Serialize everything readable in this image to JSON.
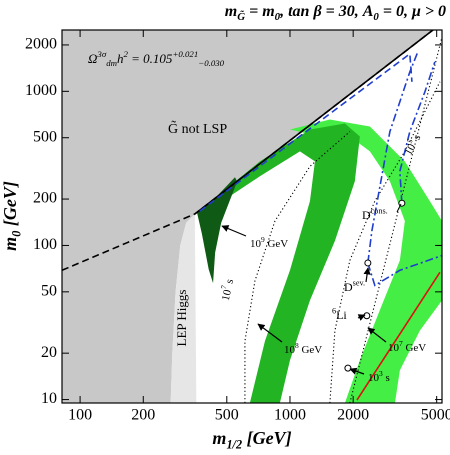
{
  "chart_data": {
    "type": "region",
    "title": [
      {
        "t": "m"
      },
      {
        "t": "G̃",
        "pos": "sub"
      },
      {
        "t": " = m"
      },
      {
        "t": "0",
        "pos": "sub"
      },
      {
        "t": ", tan β = 30, A"
      },
      {
        "t": "0",
        "pos": "sub"
      },
      {
        "t": " = 0, μ > 0"
      }
    ],
    "x_label": [
      {
        "t": "m"
      },
      {
        "t": "1/2",
        "pos": "sub"
      },
      {
        "t": " [GeV]"
      }
    ],
    "y_label": [
      {
        "t": "m"
      },
      {
        "t": "0",
        "pos": "sub"
      },
      {
        "t": " [GeV]"
      }
    ],
    "xscale": "log",
    "yscale": "log",
    "xlim": [
      82,
      5300
    ],
    "ylim": [
      9.5,
      2500
    ],
    "xticks": [
      100,
      200,
      500,
      1000,
      2000,
      5000
    ],
    "yticks": [
      10,
      20,
      50,
      100,
      200,
      500,
      1000,
      2000
    ],
    "regions": [
      {
        "color": "#c8c8c8",
        "x": [
          82,
          82,
          4800,
          352,
          320,
          300,
          285,
          275,
          270
        ],
        "y": [
          9.5,
          2500,
          2500,
          160,
          140,
          100,
          50,
          20,
          9.5
        ]
      },
      {
        "color": "#e6e6e6",
        "x": [
          270,
          275,
          285,
          300,
          320,
          352,
          358
        ],
        "y": [
          9.5,
          20,
          50,
          100,
          140,
          160,
          9.5
        ]
      },
      {
        "color": "#44ee44",
        "x": [
          1000,
          1549,
          2404,
          3526,
          4637,
          5300,
          5300,
          4157,
          3339,
          3162,
          1827,
          2153,
          2679,
          3339,
          3526,
          2992,
          2404,
          1929,
          1390
        ],
        "y": [
          565,
          656,
          591,
          351,
          194,
          144,
          44,
          28,
          15.5,
          9.5,
          9.5,
          18,
          38,
          80,
          144,
          261,
          408,
          509,
          509
        ]
      },
      {
        "color": "#22b422",
        "x": [
          394,
          719,
          1245,
          1827,
          2153,
          2037,
          1637,
          1245,
          1000,
          895,
          644,
          760,
          1000,
          1245,
          1315,
          1115,
          719,
          439
        ],
        "y": [
          180,
          351,
          565,
          618,
          509,
          261,
          107,
          44,
          18,
          9.5,
          9.5,
          24,
          69,
          194,
          351,
          408,
          281,
          180
        ]
      },
      {
        "color": "#0f5a14",
        "x": [
          360,
          420,
          480,
          547,
          560,
          520,
          470,
          440,
          430,
          410,
          380
        ],
        "y": [
          165,
          190,
          230,
          277,
          260,
          200,
          140,
          90,
          57,
          70,
          120
        ]
      }
    ],
    "lines": [
      {
        "color": "#000000",
        "dash": "solid",
        "x": [
          352,
          4800
        ],
        "y": [
          160,
          2500
        ]
      },
      {
        "color": "#000000",
        "dash": "dashed",
        "x": [
          82,
          352,
          4800
        ],
        "y": [
          69,
          160,
          2500
        ]
      },
      {
        "color": "#000000",
        "dash": "dotted",
        "x": [
          610,
          610,
          681,
          848,
          1245,
          1929
        ],
        "y": [
          9.5,
          24,
          59,
          144,
          326,
          548
        ]
      },
      {
        "color": "#000000",
        "dash": "dotted",
        "x": [
          1549,
          1637,
          1929,
          2537,
          3526,
          5180
        ],
        "y": [
          9.5,
          28,
          80,
          194,
          408,
          1153
        ]
      },
      {
        "color": "#000000",
        "dash": "dotted",
        "x": [
          1929,
          5300
        ],
        "y": [
          9.5,
          2250
        ]
      },
      {
        "color": "#dd1111",
        "dash": "solid",
        "x": [
          2085,
          5180
        ],
        "y": [
          9.93,
          67
        ]
      },
      {
        "color": "#1f3fcc",
        "dash": "dashed",
        "x": [
          372,
          3724,
          3811
        ],
        "y": [
          167,
          1750,
          1153
        ]
      },
      {
        "color": "#1f3fcc",
        "dash": "dashdot",
        "x": [
          2350,
          2455,
          2992,
          3724,
          4064
        ],
        "y": [
          77,
          124,
          548,
          1337,
          1800
        ]
      },
      {
        "color": "#1f3fcc",
        "dash": "dashdot",
        "x": [
          3412,
          3339,
          3724,
          4395,
          4898
        ],
        "y": [
          188,
          303,
          548,
          994,
          1552
        ]
      },
      {
        "color": "#1f3fcc",
        "dash": "dashdot",
        "x": [
          2350,
          2537,
          3339,
          5300
        ],
        "y": [
          77,
          55,
          69,
          86
        ]
      }
    ],
    "points": {
      "x": [
        3412,
        2350,
        2323,
        1888
      ],
      "y": [
        188,
        77,
        35,
        16
      ]
    },
    "formula": [
      {
        "t": "Ω"
      },
      {
        "t": "3σ",
        "pos": "sup"
      },
      {
        "t": "dm",
        "pos": "sub"
      },
      {
        "t": "h"
      },
      {
        "t": "2",
        "pos": "sup"
      },
      {
        "t": " = 0.105"
      },
      {
        "t": "+0.021",
        "pos": "sup"
      },
      {
        "t": "−0.030",
        "pos": "sub"
      }
    ],
    "annotations": [
      [
        {
          "t": "G̃ not LSP"
        }
      ],
      [
        {
          "t": "10"
        },
        {
          "t": "9",
          "pos": "sup"
        },
        {
          "t": " GeV"
        }
      ],
      [
        {
          "t": "10"
        },
        {
          "t": "8",
          "pos": "sup"
        },
        {
          "t": " GeV"
        }
      ],
      [
        {
          "t": "10"
        },
        {
          "t": "7",
          "pos": "sup"
        },
        {
          "t": " GeV"
        }
      ],
      [
        {
          "t": "10"
        },
        {
          "t": "7",
          "pos": "sup"
        },
        {
          "t": " s"
        }
      ],
      [
        {
          "t": "10"
        },
        {
          "t": "5",
          "pos": "sup"
        },
        {
          "t": " s"
        }
      ],
      [
        {
          "t": "10"
        },
        {
          "t": "3",
          "pos": "sup"
        },
        {
          "t": " s"
        }
      ],
      [
        {
          "t": "LEP Higgs"
        }
      ],
      [
        {
          "t": "D"
        },
        {
          "t": "cons.",
          "pos": "sup"
        }
      ],
      [
        {
          "t": "D"
        },
        {
          "t": "sev.",
          "pos": "sup"
        }
      ],
      [
        {
          "t": "6",
          "pos": "sup"
        },
        {
          "t": "Li"
        }
      ]
    ]
  }
}
